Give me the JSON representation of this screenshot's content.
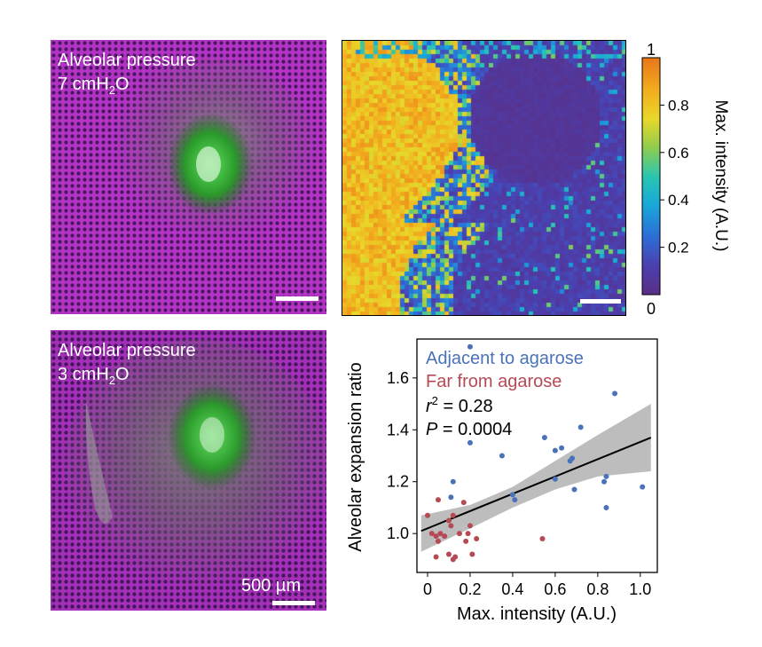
{
  "panels": {
    "top_left": {
      "label_line1": "Alveolar pressure",
      "label_line2_main": "7 cmH",
      "label_line2_sub": "2",
      "label_line2_end": "O"
    },
    "bottom_left": {
      "label_line1": "Alveolar pressure",
      "label_line2_main": "3 cmH",
      "label_line2_sub": "2",
      "label_line2_end": "O",
      "scalebar_label": "500 µm"
    }
  },
  "colors": {
    "magenta": "#c43fd1",
    "tissue_dark": "#4a1a63",
    "green": "#2fb52f",
    "blue_series": "#4a72b8",
    "red_series": "#b54a55",
    "fit_band": "#bdbdbd"
  },
  "colorbar": {
    "label": "Max. intensity (A.U.)",
    "top_label": "1",
    "bottom_label": "0",
    "ticks": [
      "0.8",
      "0.6",
      "0.4",
      "0.2"
    ],
    "tick_values": [
      0.8,
      0.6,
      0.4,
      0.2
    ],
    "colormap": "parula"
  },
  "chart_data": {
    "type": "scatter",
    "xlabel": "Max. intensity (A.U.)",
    "ylabel": "Alveolar expansion ratio",
    "xlim": [
      -0.05,
      1.08
    ],
    "ylim": [
      0.85,
      1.75
    ],
    "xticks": [
      "0",
      "0.2",
      "0.4",
      "0.6",
      "0.8",
      "1.0"
    ],
    "xtick_values": [
      0,
      0.2,
      0.4,
      0.6,
      0.8,
      1.0
    ],
    "yticks": [
      "1.0",
      "1.2",
      "1.4",
      "1.6"
    ],
    "ytick_values": [
      1.0,
      1.2,
      1.4,
      1.6
    ],
    "legend": [
      {
        "name": "Adjacent to agarose",
        "color": "#4a72b8"
      },
      {
        "name": "Far from agarose",
        "color": "#b54a55"
      }
    ],
    "stats": {
      "r2_symbol": "r",
      "r2_sup": "2",
      "r2_value": " = 0.28",
      "p_symbol": "P",
      "p_value": " = 0.0004"
    },
    "fit_line": {
      "x": [
        -0.03,
        1.05
      ],
      "y": [
        1.01,
        1.37
      ]
    },
    "band": {
      "x": [
        -0.03,
        0.2,
        0.4,
        0.6,
        0.8,
        1.05
      ],
      "upper": [
        1.07,
        1.11,
        1.18,
        1.28,
        1.38,
        1.5
      ],
      "lower": [
        0.93,
        1.02,
        1.1,
        1.17,
        1.22,
        1.24
      ]
    },
    "series": [
      {
        "name": "Adjacent to agarose",
        "color": "#4a72b8",
        "points": [
          [
            0.2,
            1.72
          ],
          [
            0.2,
            1.35
          ],
          [
            0.35,
            1.3
          ],
          [
            0.55,
            1.37
          ],
          [
            0.6,
            1.32
          ],
          [
            0.63,
            1.33
          ],
          [
            0.67,
            1.28
          ],
          [
            0.68,
            1.29
          ],
          [
            0.72,
            1.41
          ],
          [
            0.88,
            1.54
          ],
          [
            0.84,
            1.22
          ],
          [
            0.83,
            1.2
          ],
          [
            0.84,
            1.1
          ],
          [
            1.01,
            1.18
          ],
          [
            0.69,
            1.17
          ],
          [
            0.6,
            1.21
          ],
          [
            0.41,
            1.13
          ],
          [
            0.4,
            1.15
          ],
          [
            0.12,
            1.2
          ],
          [
            0.11,
            1.14
          ]
        ]
      },
      {
        "name": "Far from agarose",
        "color": "#b54a55",
        "points": [
          [
            0.0,
            1.07
          ],
          [
            0.02,
            1.0
          ],
          [
            0.04,
            0.99
          ],
          [
            0.05,
            0.97
          ],
          [
            0.04,
            0.91
          ],
          [
            0.06,
            1.0
          ],
          [
            0.05,
            1.13
          ],
          [
            0.08,
            0.99
          ],
          [
            0.1,
            1.05
          ],
          [
            0.11,
            1.03
          ],
          [
            0.12,
            1.07
          ],
          [
            0.1,
            0.92
          ],
          [
            0.12,
            0.9
          ],
          [
            0.13,
            0.91
          ],
          [
            0.15,
            1.0
          ],
          [
            0.18,
            0.97
          ],
          [
            0.19,
            1.0
          ],
          [
            0.2,
            1.03
          ],
          [
            0.21,
            0.92
          ],
          [
            0.23,
            0.98
          ],
          [
            0.54,
            0.98
          ],
          [
            0.17,
            1.12
          ]
        ]
      }
    ]
  }
}
